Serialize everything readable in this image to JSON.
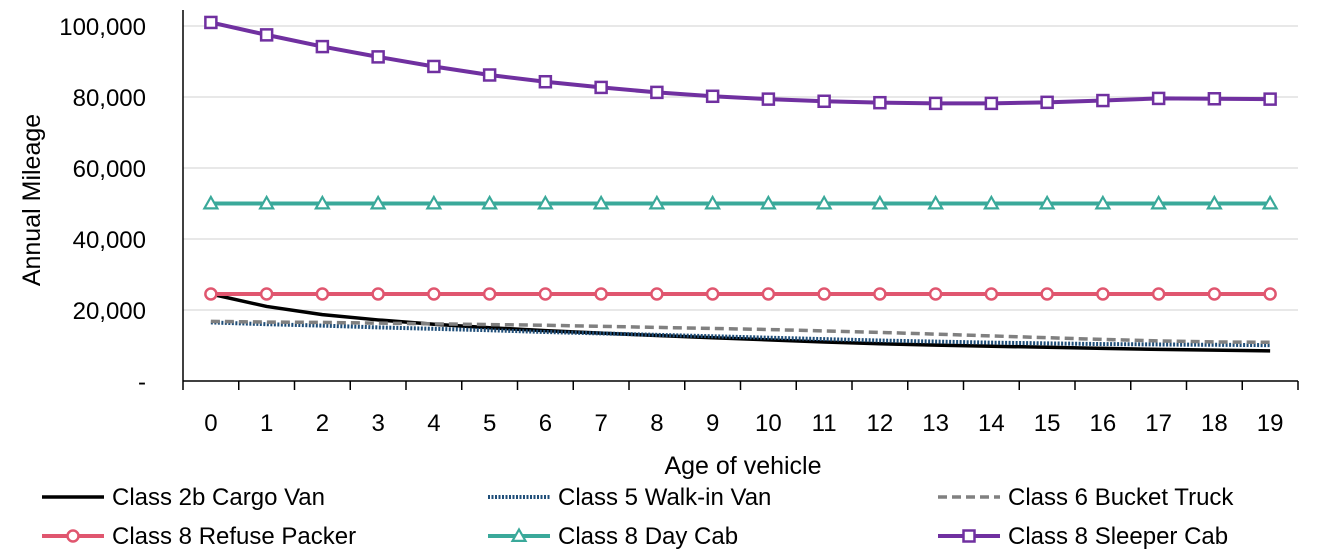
{
  "chart_data": {
    "type": "line",
    "xlabel": "Age of vehicle",
    "ylabel": "Annual Mileage",
    "x": [
      0,
      1,
      2,
      3,
      4,
      5,
      6,
      7,
      8,
      9,
      10,
      11,
      12,
      13,
      14,
      15,
      16,
      17,
      18,
      19
    ],
    "ylim": [
      0,
      100000
    ],
    "yticks": [
      {
        "value": 0,
        "label": "-"
      },
      {
        "value": 20000,
        "label": "20,000"
      },
      {
        "value": 40000,
        "label": "40,000"
      },
      {
        "value": 60000,
        "label": "60,000"
      },
      {
        "value": 80000,
        "label": "80,000"
      },
      {
        "value": 100000,
        "label": "100,000"
      }
    ],
    "grid": "horizontal",
    "legend_position": "bottom",
    "series": [
      {
        "name": "Class 2b Cargo Van",
        "color": "#000000",
        "style": "solid",
        "marker": "none",
        "values": [
          24500,
          21000,
          18700,
          17200,
          16000,
          15000,
          14200,
          13500,
          12800,
          12200,
          11600,
          11000,
          10500,
          10100,
          9800,
          9500,
          9200,
          8900,
          8700,
          8500
        ]
      },
      {
        "name": "Class 5 Walk-in Van",
        "color": "#1f4e79",
        "style": "dotted",
        "marker": "none",
        "values": [
          16500,
          16000,
          15600,
          15100,
          14700,
          14300,
          13800,
          13400,
          13000,
          12600,
          12200,
          11800,
          11400,
          11100,
          10800,
          10600,
          10400,
          10300,
          10200,
          10100
        ]
      },
      {
        "name": "Class 6 Bucket Truck",
        "color": "#808080",
        "style": "dashed",
        "marker": "none",
        "values": [
          16800,
          16600,
          16500,
          16300,
          16100,
          15900,
          15700,
          15400,
          15100,
          14800,
          14500,
          14100,
          13700,
          13200,
          12700,
          12200,
          11700,
          11300,
          11000,
          10900
        ]
      },
      {
        "name": "Class 8 Refuse Packer",
        "color": "#e0566f",
        "style": "solid",
        "marker": "circle",
        "values": [
          24500,
          24500,
          24500,
          24500,
          24500,
          24500,
          24500,
          24500,
          24500,
          24500,
          24500,
          24500,
          24500,
          24500,
          24500,
          24500,
          24500,
          24500,
          24500,
          24500
        ]
      },
      {
        "name": "Class 8 Day Cab",
        "color": "#3aa99a",
        "style": "solid",
        "marker": "triangle",
        "values": [
          50000,
          50000,
          50000,
          50000,
          50000,
          50000,
          50000,
          50000,
          50000,
          50000,
          50000,
          50000,
          50000,
          50000,
          50000,
          50000,
          50000,
          50000,
          50000,
          50000
        ]
      },
      {
        "name": "Class 8 Sleeper Cab",
        "color": "#7030a0",
        "style": "solid",
        "marker": "square",
        "values": [
          101000,
          97500,
          94200,
          91300,
          88600,
          86200,
          84300,
          82700,
          81300,
          80200,
          79400,
          78800,
          78400,
          78200,
          78200,
          78500,
          79000,
          79600,
          79500,
          79400
        ]
      }
    ]
  }
}
